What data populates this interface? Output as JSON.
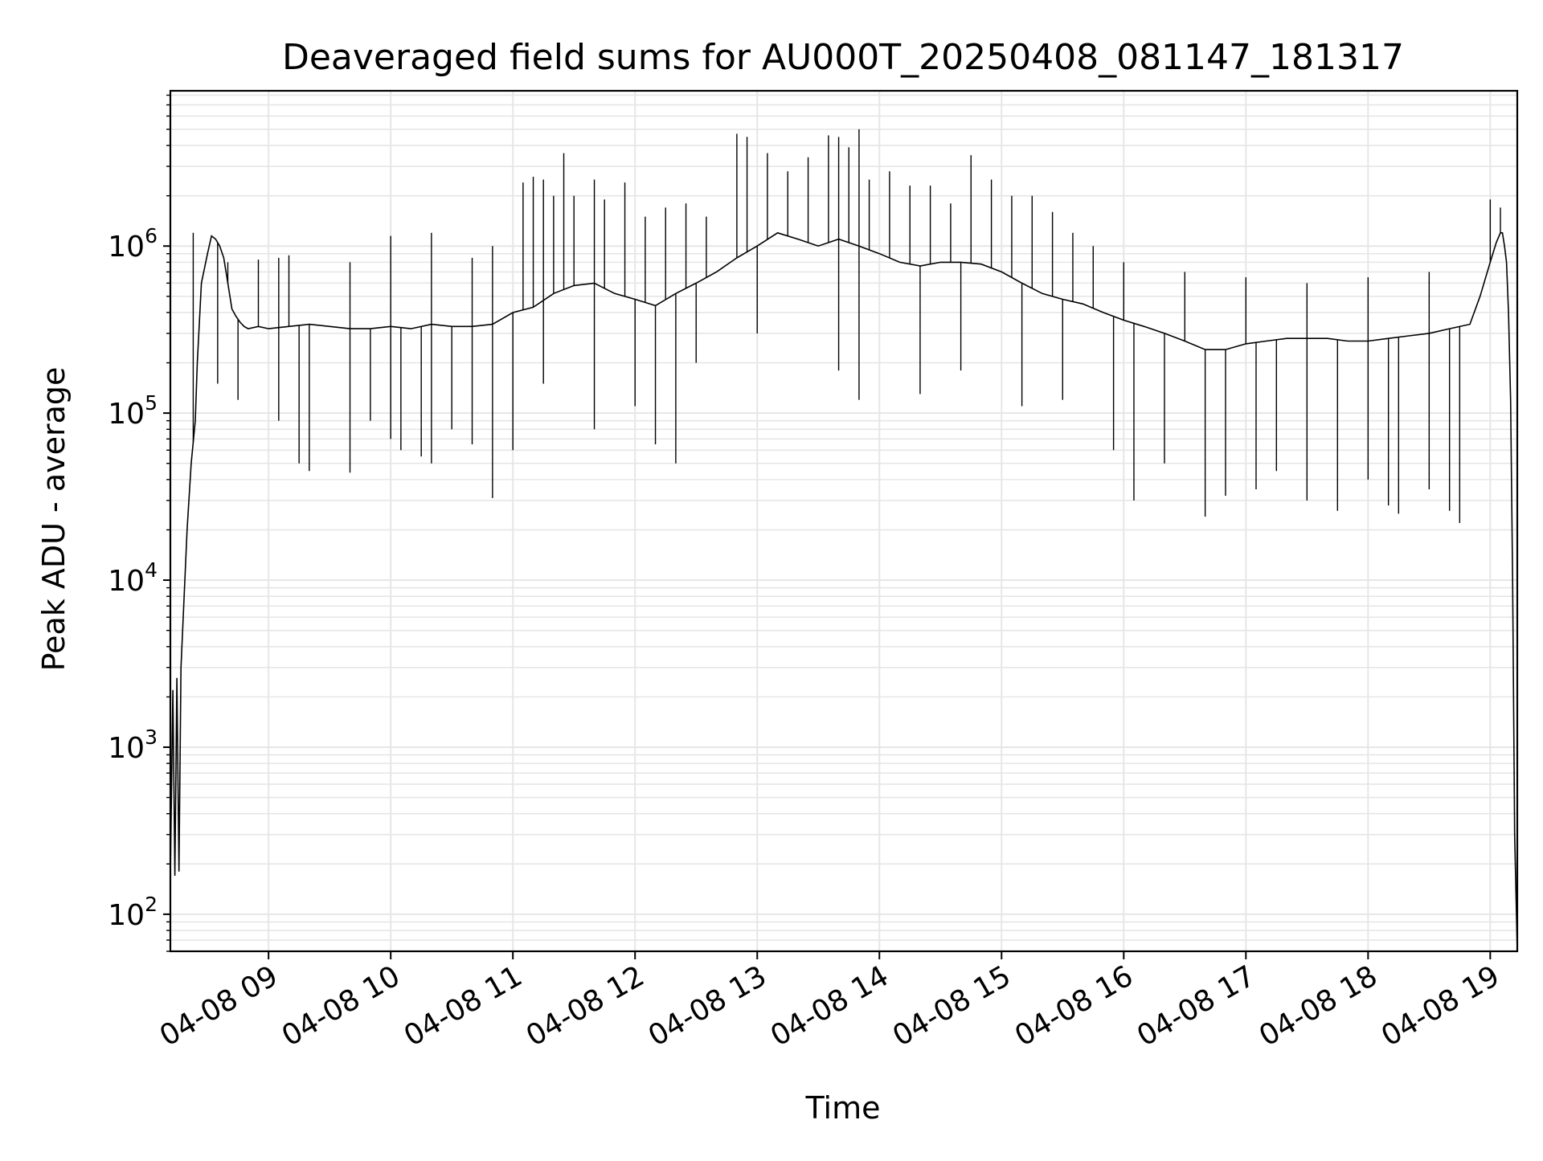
{
  "chart_data": {
    "type": "line",
    "title": "Deaveraged field sums for AU000T_20250408_081147_181317",
    "xlabel": "Time",
    "ylabel": "Peak ADU - average",
    "yscale": "log",
    "xlim": [
      "2025-04-08 08:11:47",
      "2025-04-08 19:13:17"
    ],
    "ylim": [
      60,
      8500000
    ],
    "grid": true,
    "grid_color": "#e6e6e6",
    "line_color": "#000000",
    "x_ticks": [
      {
        "t": "2025-04-08 09:00",
        "label": "04-08 09"
      },
      {
        "t": "2025-04-08 10:00",
        "label": "04-08 10"
      },
      {
        "t": "2025-04-08 11:00",
        "label": "04-08 11"
      },
      {
        "t": "2025-04-08 12:00",
        "label": "04-08 12"
      },
      {
        "t": "2025-04-08 13:00",
        "label": "04-08 13"
      },
      {
        "t": "2025-04-08 14:00",
        "label": "04-08 14"
      },
      {
        "t": "2025-04-08 15:00",
        "label": "04-08 15"
      },
      {
        "t": "2025-04-08 16:00",
        "label": "04-08 16"
      },
      {
        "t": "2025-04-08 17:00",
        "label": "04-08 17"
      },
      {
        "t": "2025-04-08 18:00",
        "label": "04-08 18"
      },
      {
        "t": "2025-04-08 19:00",
        "label": "04-08 19"
      }
    ],
    "y_ticks": [
      {
        "value": 100,
        "base": "10",
        "exp": "2"
      },
      {
        "value": 1000,
        "base": "10",
        "exp": "3"
      },
      {
        "value": 10000,
        "base": "10",
        "exp": "4"
      },
      {
        "value": 100000,
        "base": "10",
        "exp": "5"
      },
      {
        "value": 1000000,
        "base": "10",
        "exp": "6"
      }
    ],
    "series": [
      {
        "x": [
          "2025-04-08 08:11:47",
          "2025-04-08 08:13:00",
          "2025-04-08 08:14:00",
          "2025-04-08 08:15:00",
          "2025-04-08 08:16:00",
          "2025-04-08 08:17:00",
          "2025-04-08 08:20:00",
          "2025-04-08 08:22:00",
          "2025-04-08 08:24:00",
          "2025-04-08 08:25:00",
          "2025-04-08 08:27:00",
          "2025-04-08 08:30:00",
          "2025-04-08 08:32:00",
          "2025-04-08 08:34:00",
          "2025-04-08 08:36:00",
          "2025-04-08 08:38:00",
          "2025-04-08 08:40:00",
          "2025-04-08 08:42:00",
          "2025-04-08 08:44:00",
          "2025-04-08 08:46:00",
          "2025-04-08 08:48:00",
          "2025-04-08 08:50:00",
          "2025-04-08 08:55:00",
          "2025-04-08 09:00:00",
          "2025-04-08 09:10:00",
          "2025-04-08 09:20:00",
          "2025-04-08 09:30:00",
          "2025-04-08 09:40:00",
          "2025-04-08 09:50:00",
          "2025-04-08 10:00:00",
          "2025-04-08 10:10:00",
          "2025-04-08 10:20:00",
          "2025-04-08 10:30:00",
          "2025-04-08 10:40:00",
          "2025-04-08 10:50:00",
          "2025-04-08 11:00:00",
          "2025-04-08 11:10:00",
          "2025-04-08 11:20:00",
          "2025-04-08 11:30:00",
          "2025-04-08 11:40:00",
          "2025-04-08 11:50:00",
          "2025-04-08 12:00:00",
          "2025-04-08 12:10:00",
          "2025-04-08 12:20:00",
          "2025-04-08 12:30:00",
          "2025-04-08 12:40:00",
          "2025-04-08 12:50:00",
          "2025-04-08 13:00:00",
          "2025-04-08 13:10:00",
          "2025-04-08 13:20:00",
          "2025-04-08 13:30:00",
          "2025-04-08 13:40:00",
          "2025-04-08 13:50:00",
          "2025-04-08 14:00:00",
          "2025-04-08 14:10:00",
          "2025-04-08 14:20:00",
          "2025-04-08 14:30:00",
          "2025-04-08 14:40:00",
          "2025-04-08 14:50:00",
          "2025-04-08 15:00:00",
          "2025-04-08 15:10:00",
          "2025-04-08 15:20:00",
          "2025-04-08 15:30:00",
          "2025-04-08 15:40:00",
          "2025-04-08 15:50:00",
          "2025-04-08 16:00:00",
          "2025-04-08 16:10:00",
          "2025-04-08 16:20:00",
          "2025-04-08 16:30:00",
          "2025-04-08 16:40:00",
          "2025-04-08 16:50:00",
          "2025-04-08 17:00:00",
          "2025-04-08 17:10:00",
          "2025-04-08 17:20:00",
          "2025-04-08 17:30:00",
          "2025-04-08 17:40:00",
          "2025-04-08 17:50:00",
          "2025-04-08 18:00:00",
          "2025-04-08 18:10:00",
          "2025-04-08 18:20:00",
          "2025-04-08 18:30:00",
          "2025-04-08 18:40:00",
          "2025-04-08 18:50:00",
          "2025-04-08 18:55:00",
          "2025-04-08 19:00:00",
          "2025-04-08 19:03:00",
          "2025-04-08 19:05:00",
          "2025-04-08 19:06:00",
          "2025-04-08 19:07:00",
          "2025-04-08 19:08:00",
          "2025-04-08 19:09:00",
          "2025-04-08 19:10:00",
          "2025-04-08 19:11:00",
          "2025-04-08 19:12:00",
          "2025-04-08 19:13:17"
        ],
        "y": [
          170,
          2200,
          170,
          2600,
          180,
          3000,
          20000,
          50000,
          90000,
          200000,
          600000,
          900000,
          1150000,
          1100000,
          1000000,
          850000,
          600000,
          420000,
          380000,
          350000,
          330000,
          320000,
          330000,
          320000,
          330000,
          340000,
          330000,
          320000,
          320000,
          330000,
          320000,
          340000,
          330000,
          330000,
          340000,
          400000,
          430000,
          520000,
          580000,
          600000,
          520000,
          480000,
          440000,
          520000,
          600000,
          700000,
          850000,
          1000000,
          1200000,
          1100000,
          1000000,
          1100000,
          1000000,
          900000,
          800000,
          760000,
          800000,
          800000,
          780000,
          700000,
          600000,
          520000,
          480000,
          450000,
          400000,
          360000,
          330000,
          300000,
          270000,
          240000,
          240000,
          260000,
          270000,
          280000,
          280000,
          280000,
          270000,
          270000,
          280000,
          290000,
          300000,
          320000,
          340000,
          500000,
          800000,
          1050000,
          1200000,
          1200000,
          1000000,
          800000,
          400000,
          120000,
          10000,
          300,
          60
        ]
      }
    ],
    "spikes": {
      "up": [
        [
          "2025-04-08 08:23:00",
          1200000
        ],
        [
          "2025-04-08 08:40:00",
          800000
        ],
        [
          "2025-04-08 08:55:00",
          830000
        ],
        [
          "2025-04-08 09:05:00",
          850000
        ],
        [
          "2025-04-08 09:10:00",
          880000
        ],
        [
          "2025-04-08 09:40:00",
          800000
        ],
        [
          "2025-04-08 10:00:00",
          1150000
        ],
        [
          "2025-04-08 10:20:00",
          1200000
        ],
        [
          "2025-04-08 10:40:00",
          850000
        ],
        [
          "2025-04-08 10:50:00",
          1000000
        ],
        [
          "2025-04-08 11:05:00",
          2400000
        ],
        [
          "2025-04-08 11:10:00",
          2600000
        ],
        [
          "2025-04-08 11:15:00",
          2500000
        ],
        [
          "2025-04-08 11:20:00",
          2000000
        ],
        [
          "2025-04-08 11:25:00",
          3600000
        ],
        [
          "2025-04-08 11:30:00",
          2000000
        ],
        [
          "2025-04-08 11:40:00",
          2500000
        ],
        [
          "2025-04-08 11:45:00",
          1900000
        ],
        [
          "2025-04-08 11:55:00",
          2400000
        ],
        [
          "2025-04-08 12:05:00",
          1500000
        ],
        [
          "2025-04-08 12:15:00",
          1700000
        ],
        [
          "2025-04-08 12:25:00",
          1800000
        ],
        [
          "2025-04-08 12:35:00",
          1500000
        ],
        [
          "2025-04-08 12:50:00",
          4700000
        ],
        [
          "2025-04-08 12:55:00",
          4500000
        ],
        [
          "2025-04-08 13:05:00",
          3600000
        ],
        [
          "2025-04-08 13:15:00",
          2800000
        ],
        [
          "2025-04-08 13:25:00",
          3400000
        ],
        [
          "2025-04-08 13:35:00",
          4600000
        ],
        [
          "2025-04-08 13:40:00",
          4500000
        ],
        [
          "2025-04-08 13:45:00",
          3900000
        ],
        [
          "2025-04-08 13:50:00",
          5000000
        ],
        [
          "2025-04-08 13:55:00",
          2500000
        ],
        [
          "2025-04-08 14:05:00",
          2800000
        ],
        [
          "2025-04-08 14:15:00",
          2300000
        ],
        [
          "2025-04-08 14:25:00",
          2300000
        ],
        [
          "2025-04-08 14:35:00",
          1800000
        ],
        [
          "2025-04-08 14:45:00",
          3500000
        ],
        [
          "2025-04-08 14:55:00",
          2500000
        ],
        [
          "2025-04-08 15:05:00",
          2000000
        ],
        [
          "2025-04-08 15:15:00",
          2000000
        ],
        [
          "2025-04-08 15:25:00",
          1600000
        ],
        [
          "2025-04-08 15:35:00",
          1200000
        ],
        [
          "2025-04-08 15:45:00",
          1000000
        ],
        [
          "2025-04-08 16:00:00",
          800000
        ],
        [
          "2025-04-08 16:30:00",
          700000
        ],
        [
          "2025-04-08 17:00:00",
          650000
        ],
        [
          "2025-04-08 17:30:00",
          600000
        ],
        [
          "2025-04-08 18:00:00",
          650000
        ],
        [
          "2025-04-08 18:30:00",
          700000
        ],
        [
          "2025-04-08 19:00:00",
          1900000
        ],
        [
          "2025-04-08 19:05:00",
          1700000
        ]
      ],
      "down": [
        [
          "2025-04-08 08:35:00",
          150000
        ],
        [
          "2025-04-08 08:45:00",
          120000
        ],
        [
          "2025-04-08 09:05:00",
          90000
        ],
        [
          "2025-04-08 09:15:00",
          50000
        ],
        [
          "2025-04-08 09:20:00",
          45000
        ],
        [
          "2025-04-08 09:40:00",
          44000
        ],
        [
          "2025-04-08 09:50:00",
          90000
        ],
        [
          "2025-04-08 10:00:00",
          70000
        ],
        [
          "2025-04-08 10:05:00",
          60000
        ],
        [
          "2025-04-08 10:15:00",
          55000
        ],
        [
          "2025-04-08 10:20:00",
          50000
        ],
        [
          "2025-04-08 10:30:00",
          80000
        ],
        [
          "2025-04-08 10:40:00",
          65000
        ],
        [
          "2025-04-08 10:50:00",
          31000
        ],
        [
          "2025-04-08 11:00:00",
          60000
        ],
        [
          "2025-04-08 11:15:00",
          150000
        ],
        [
          "2025-04-08 11:40:00",
          80000
        ],
        [
          "2025-04-08 12:00:00",
          110000
        ],
        [
          "2025-04-08 12:10:00",
          65000
        ],
        [
          "2025-04-08 12:20:00",
          50000
        ],
        [
          "2025-04-08 12:30:00",
          200000
        ],
        [
          "2025-04-08 13:00:00",
          300000
        ],
        [
          "2025-04-08 13:40:00",
          180000
        ],
        [
          "2025-04-08 13:50:00",
          120000
        ],
        [
          "2025-04-08 14:20:00",
          130000
        ],
        [
          "2025-04-08 14:40:00",
          180000
        ],
        [
          "2025-04-08 15:10:00",
          110000
        ],
        [
          "2025-04-08 15:30:00",
          120000
        ],
        [
          "2025-04-08 15:55:00",
          60000
        ],
        [
          "2025-04-08 16:05:00",
          30000
        ],
        [
          "2025-04-08 16:20:00",
          50000
        ],
        [
          "2025-04-08 16:40:00",
          24000
        ],
        [
          "2025-04-08 16:50:00",
          32000
        ],
        [
          "2025-04-08 17:05:00",
          35000
        ],
        [
          "2025-04-08 17:15:00",
          45000
        ],
        [
          "2025-04-08 17:30:00",
          30000
        ],
        [
          "2025-04-08 17:45:00",
          26000
        ],
        [
          "2025-04-08 18:00:00",
          40000
        ],
        [
          "2025-04-08 18:10:00",
          28000
        ],
        [
          "2025-04-08 18:15:00",
          25000
        ],
        [
          "2025-04-08 18:30:00",
          35000
        ],
        [
          "2025-04-08 18:40:00",
          26000
        ],
        [
          "2025-04-08 18:45:00",
          22000
        ]
      ]
    }
  }
}
